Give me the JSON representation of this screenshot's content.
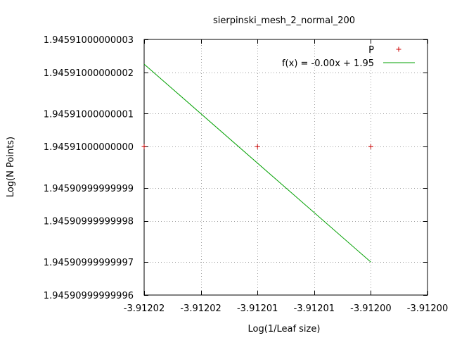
{
  "chart_data": {
    "type": "scatter",
    "title": "sierpinski_mesh_2_normal_200",
    "xlabel": "Log(1/Leaf size)",
    "ylabel": "Log(N Points)",
    "xlim": [
      -3.912025,
      -3.912
    ],
    "ylim": [
      1.945909999999996,
      1.945910000000003
    ],
    "x_ticks": [
      {
        "v": -3.912025,
        "label": "-3.91202"
      },
      {
        "v": -3.91202,
        "label": "-3.91202"
      },
      {
        "v": -3.912015,
        "label": "-3.91201"
      },
      {
        "v": -3.91201,
        "label": "-3.91201"
      },
      {
        "v": -3.912005,
        "label": "-3.91200"
      },
      {
        "v": -3.912,
        "label": "-3.91200"
      }
    ],
    "y_ticks": [
      {
        "v": 1.945909999999996,
        "label": "1.94590999999996"
      },
      {
        "v": 1.945909999999997,
        "label": "1.94590999999997"
      },
      {
        "v": 1.945909999999998,
        "label": "1.94590999999998"
      },
      {
        "v": 1.945909999999999,
        "label": "1.94590999999999"
      },
      {
        "v": 1.94591,
        "label": "1.94591000000000"
      },
      {
        "v": 1.945910000000001,
        "label": "1.94591000000001"
      },
      {
        "v": 1.945910000000002,
        "label": "1.94591000000002"
      },
      {
        "v": 1.945910000000003,
        "label": "1.94591000000003"
      }
    ],
    "grid": true,
    "legend_position": "top-right",
    "series": [
      {
        "name": "P",
        "kind": "points",
        "marker": "plus",
        "color": "#cc0000",
        "points": [
          {
            "x": -3.912025,
            "y": 1.94591
          },
          {
            "x": -3.912015,
            "y": 1.94591
          },
          {
            "x": -3.912005,
            "y": 1.94591
          }
        ]
      },
      {
        "name": "f(x) = -0.00x + 1.95",
        "kind": "line",
        "color": "#00a000",
        "points": [
          {
            "x": -3.912025,
            "y": 1.9459100000000022
          },
          {
            "x": -3.912005,
            "y": 1.945909999999997
          }
        ]
      }
    ]
  }
}
